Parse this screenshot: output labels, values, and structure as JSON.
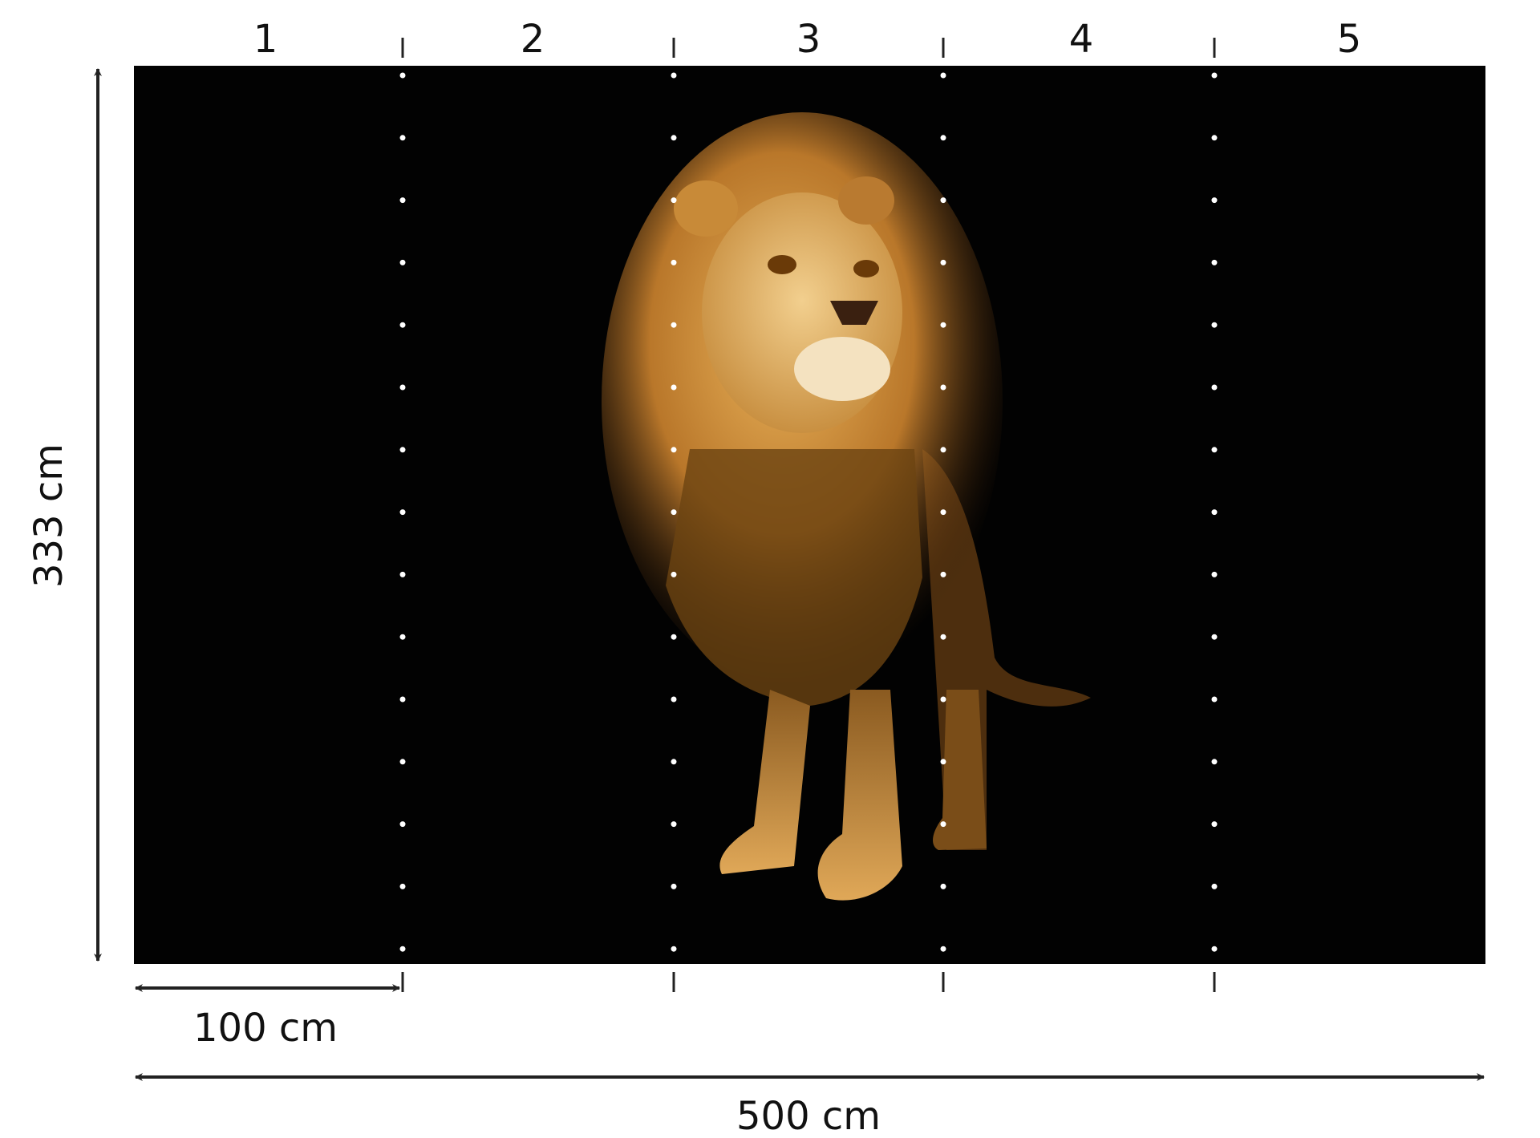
{
  "panels": [
    "1",
    "2",
    "3",
    "4",
    "5"
  ],
  "height_label": "333 cm",
  "panel_width_label": "100 cm",
  "total_width_label": "500 cm"
}
